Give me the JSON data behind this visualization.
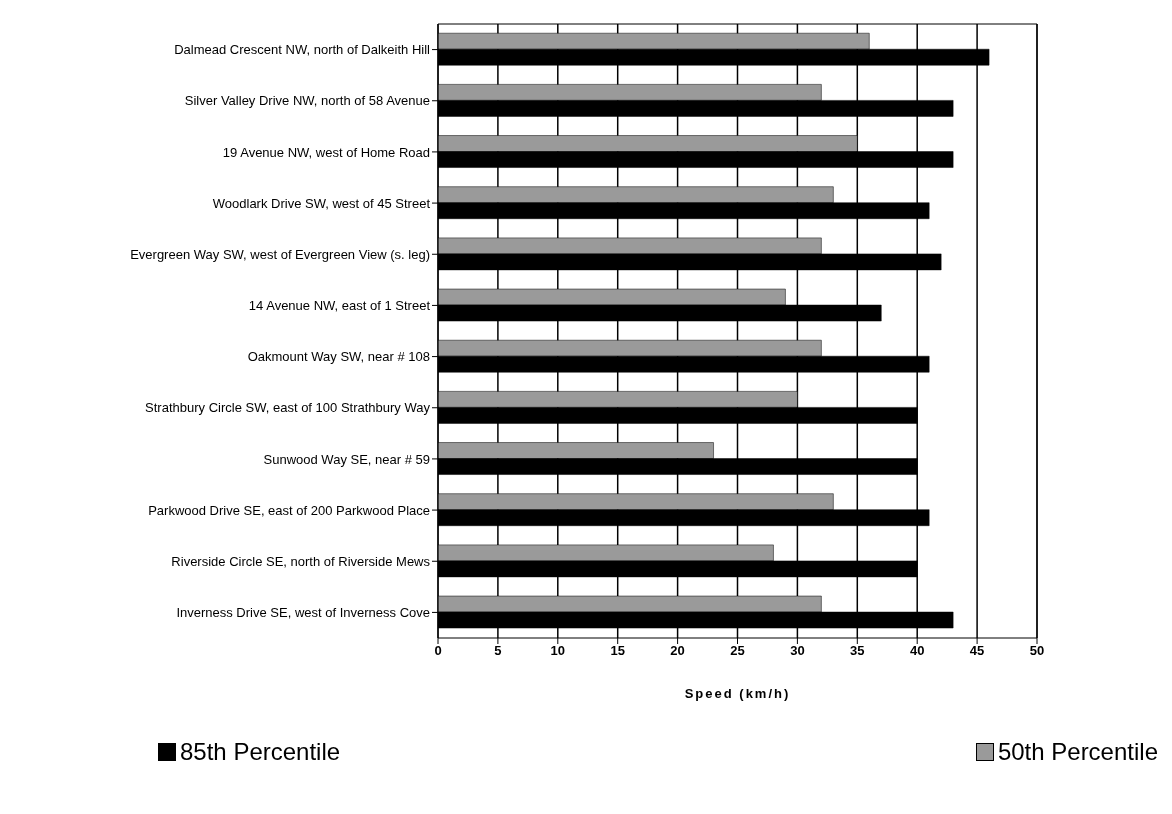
{
  "chart_data": {
    "type": "bar",
    "orientation": "horizontal",
    "xlabel": "Speed (km/h)",
    "categories": [
      "Dalmead Crescent NW, north of Dalkeith Hill",
      "Silver Valley Drive NW, north of 58 Avenue",
      "19 Avenue NW, west of Home Road",
      "Woodlark Drive SW, west of 45 Street",
      "Evergreen Way SW, west of Evergreen View (s. leg)",
      "14 Avenue NW, east of 1 Street",
      "Oakmount Way SW, near # 108",
      "Strathbury Circle SW, east of 100 Strathbury Way",
      "Sunwood Way SE, near # 59",
      "Parkwood Drive SE, east of 200 Parkwood Place",
      "Riverside Circle SE, north of Riverside Mews",
      "Inverness Drive SE, west of Inverness Cove"
    ],
    "series": [
      {
        "name": "50th Percentile",
        "color": "#9a9a9a",
        "values": [
          36,
          32,
          35,
          33,
          32,
          29,
          32,
          30,
          23,
          33,
          28,
          32
        ]
      },
      {
        "name": "85th Percentile",
        "color": "#000000",
        "values": [
          46,
          43,
          43,
          41,
          42,
          37,
          41,
          40,
          40,
          41,
          40,
          43
        ]
      }
    ],
    "xlim": [
      0,
      50
    ],
    "xticks": [
      0,
      5,
      10,
      15,
      20,
      25,
      30,
      35,
      40,
      45,
      50
    ],
    "grid": "x",
    "legend": "bottom"
  }
}
